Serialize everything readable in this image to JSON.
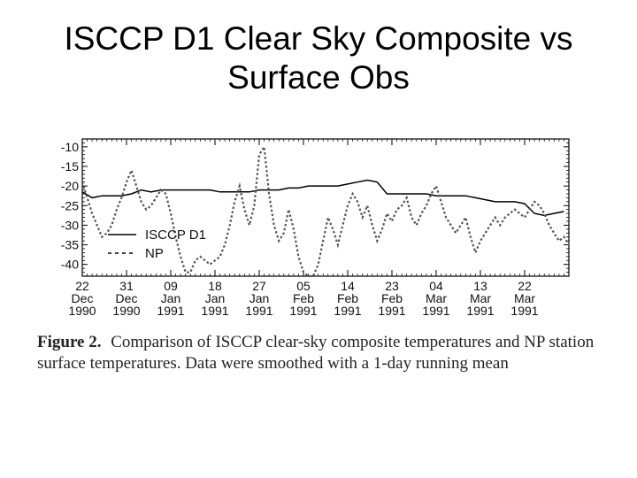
{
  "title": {
    "line1": "ISCCP D1 Clear Sky Composite vs",
    "line2": "Surface Obs"
  },
  "chart_data": {
    "type": "line",
    "title": "",
    "xlabel": "",
    "ylabel": "",
    "ylim": [
      -43,
      -8
    ],
    "xlim": [
      0,
      99
    ],
    "yticks": [
      -10,
      -15,
      -20,
      -25,
      -30,
      -35,
      -40
    ],
    "xticks": [
      {
        "x": 0,
        "day": "22",
        "month": "Dec",
        "year": "1990"
      },
      {
        "x": 9,
        "day": "31",
        "month": "Dec",
        "year": "1990"
      },
      {
        "x": 18,
        "day": "09",
        "month": "Jan",
        "year": "1991"
      },
      {
        "x": 27,
        "day": "18",
        "month": "Jan",
        "year": "1991"
      },
      {
        "x": 36,
        "day": "27",
        "month": "Jan",
        "year": "1991"
      },
      {
        "x": 45,
        "day": "05",
        "month": "Feb",
        "year": "1991"
      },
      {
        "x": 54,
        "day": "14",
        "month": "Feb",
        "year": "1991"
      },
      {
        "x": 63,
        "day": "23",
        "month": "Feb",
        "year": "1991"
      },
      {
        "x": 72,
        "day": "04",
        "month": "Mar",
        "year": "1991"
      },
      {
        "x": 81,
        "day": "13",
        "month": "Mar",
        "year": "1991"
      },
      {
        "x": 90,
        "day": "22",
        "month": "Mar",
        "year": "1991"
      }
    ],
    "grid": false,
    "legend": "lower-left",
    "series": [
      {
        "name": "ISCCP D1",
        "style": "solid",
        "x": [
          0,
          2,
          4,
          6,
          8,
          10,
          12,
          14,
          16,
          18,
          20,
          22,
          24,
          26,
          28,
          30,
          32,
          34,
          36,
          38,
          40,
          42,
          44,
          46,
          48,
          50,
          52,
          54,
          56,
          58,
          60,
          62,
          64,
          66,
          68,
          70,
          72,
          74,
          76,
          78,
          80,
          82,
          84,
          86,
          88,
          90,
          92,
          94,
          96,
          98
        ],
        "y": [
          -21.5,
          -23,
          -22.5,
          -22.5,
          -22.5,
          -22,
          -21,
          -21.5,
          -21,
          -21,
          -21,
          -21,
          -21,
          -21,
          -21.5,
          -21.5,
          -21.5,
          -21.5,
          -21,
          -21,
          -21,
          -20.5,
          -20.5,
          -20,
          -20,
          -20,
          -20,
          -19.5,
          -19,
          -18.5,
          -19,
          -22,
          -22,
          -22,
          -22,
          -22,
          -22.5,
          -22.5,
          -22.5,
          -22.5,
          -23,
          -23.5,
          -24,
          -24,
          -24,
          -24.5,
          -27,
          -27.5,
          -27,
          -26.5
        ]
      },
      {
        "name": "NP",
        "style": "dashed",
        "x": [
          0,
          1,
          2,
          3,
          4,
          5,
          6,
          7,
          8,
          9,
          10,
          11,
          12,
          13,
          14,
          15,
          16,
          17,
          18,
          19,
          20,
          21,
          22,
          23,
          24,
          25,
          26,
          27,
          28,
          29,
          30,
          31,
          32,
          33,
          34,
          35,
          36,
          37,
          38,
          39,
          40,
          41,
          42,
          43,
          44,
          45,
          46,
          47,
          48,
          49,
          50,
          51,
          52,
          53,
          54,
          55,
          56,
          57,
          58,
          59,
          60,
          61,
          62,
          63,
          64,
          65,
          66,
          67,
          68,
          69,
          70,
          71,
          72,
          73,
          74,
          75,
          76,
          77,
          78,
          79,
          80,
          81,
          82,
          83,
          84,
          85,
          86,
          87,
          88,
          89,
          90,
          91,
          92,
          93,
          94,
          95,
          96,
          97,
          98,
          99
        ],
        "y": [
          -19,
          -23,
          -27,
          -30,
          -33,
          -32,
          -30,
          -26,
          -23,
          -19,
          -16,
          -20,
          -24,
          -26,
          -25,
          -23,
          -21,
          -22,
          -27,
          -33,
          -38,
          -42,
          -42,
          -39,
          -38,
          -39,
          -40,
          -39,
          -38,
          -35,
          -30,
          -24,
          -20,
          -26,
          -30,
          -25,
          -12,
          -10,
          -22,
          -30,
          -34,
          -32,
          -26,
          -31,
          -38,
          -42,
          -43,
          -43,
          -40,
          -34,
          -28,
          -31,
          -35,
          -30,
          -25,
          -22,
          -24,
          -28,
          -25,
          -30,
          -34,
          -31,
          -27,
          -29,
          -26,
          -25,
          -23,
          -28,
          -30,
          -27,
          -25,
          -22,
          -20,
          -24,
          -28,
          -30,
          -32,
          -30,
          -28,
          -33,
          -37,
          -34,
          -32,
          -30,
          -28,
          -30,
          -28,
          -27,
          -26,
          -27,
          -28,
          -26,
          -24,
          -25,
          -27,
          -30,
          -32,
          -34,
          -33,
          -35
        ]
      }
    ]
  },
  "legend": {
    "items": [
      {
        "label": "ISCCP D1",
        "style": "solid"
      },
      {
        "label": "NP",
        "style": "dashed"
      }
    ]
  },
  "caption": {
    "label": "Figure 2.",
    "text": "Comparison of ISCCP clear-sky composite temperatures and NP station surface temperatures. Data were smoothed with a 1-day running mean"
  }
}
